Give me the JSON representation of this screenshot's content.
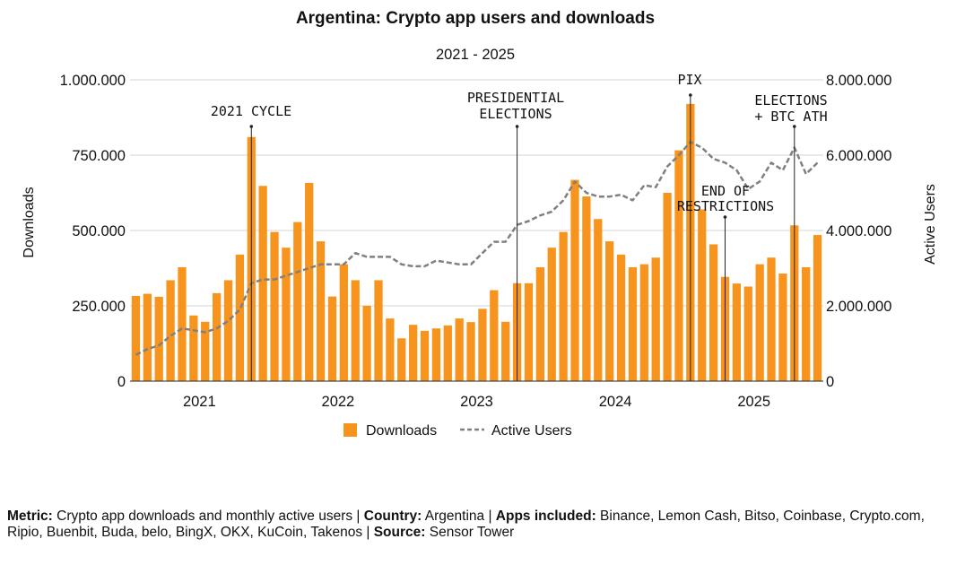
{
  "chart_data": {
    "type": "bar+line",
    "title": "Argentina: Crypto app users and downloads",
    "subtitle": "2021 - 2025",
    "ylabel_left": "Downloads",
    "ylabel_right": "Active Users",
    "ylim_left": [
      0,
      1000000
    ],
    "ylim_right": [
      0,
      8000000
    ],
    "yticks_left": [
      "0",
      "250.000",
      "500.000",
      "750.000",
      "1.000.000"
    ],
    "yticks_right": [
      "0",
      "2.000.000",
      "4.000.000",
      "6.000.000",
      "8.000.000"
    ],
    "xticks": [
      "2021",
      "2022",
      "2023",
      "2024",
      "2025"
    ],
    "xtick_positions": [
      6,
      18,
      30,
      42,
      54
    ],
    "legend": {
      "downloads": "Downloads",
      "active_users": "Active Users"
    },
    "colors": {
      "bar": "#F7941D",
      "line": "#808080",
      "text": "#111111"
    },
    "downloads": [
      283000,
      290000,
      280000,
      335000,
      378000,
      218000,
      197000,
      292000,
      335000,
      420000,
      810000,
      648000,
      495000,
      443000,
      528000,
      658000,
      464000,
      281000,
      388000,
      335000,
      250000,
      335000,
      208000,
      142000,
      187000,
      167000,
      175000,
      185000,
      208000,
      196000,
      240000,
      302000,
      197000,
      325000,
      325000,
      378000,
      443000,
      495000,
      668000,
      613000,
      538000,
      464000,
      420000,
      378000,
      388000,
      410000,
      625000,
      766000,
      920000,
      570000,
      454000,
      346000,
      324000,
      314000,
      388000,
      410000,
      357000,
      517000,
      378000,
      485000
    ],
    "active_users": [
      700000,
      850000,
      950000,
      1200000,
      1400000,
      1350000,
      1300000,
      1400000,
      1600000,
      1900000,
      2600000,
      2700000,
      2700000,
      2800000,
      2900000,
      3000000,
      3100000,
      3100000,
      3100000,
      3400000,
      3300000,
      3300000,
      3300000,
      3100000,
      3050000,
      3050000,
      3200000,
      3150000,
      3100000,
      3100000,
      3400000,
      3700000,
      3700000,
      4150000,
      4250000,
      4400000,
      4500000,
      4800000,
      5300000,
      5000000,
      4900000,
      4900000,
      4950000,
      4800000,
      5200000,
      5150000,
      5700000,
      6000000,
      6350000,
      6200000,
      5900000,
      5800000,
      5600000,
      5100000,
      5300000,
      5800000,
      5600000,
      6200000,
      5500000,
      5800000
    ],
    "annotations": [
      {
        "lines": [
          "2021 CYCLE"
        ],
        "index": 10
      },
      {
        "lines": [
          "PRESIDENTIAL",
          "ELECTIONS"
        ],
        "index": 33
      },
      {
        "lines": [
          "PIX"
        ],
        "index": 48
      },
      {
        "lines": [
          "END OF",
          "RESTRICTIONS"
        ],
        "index": 51
      },
      {
        "lines": [
          "ELECTIONS",
          "+ BTC ATH"
        ],
        "index": 57
      }
    ]
  },
  "footer": {
    "metric_label": "Metric:",
    "metric_value": " Crypto app downloads and monthly active users | ",
    "country_label": "Country:",
    "country_value": " Argentina | ",
    "apps_label": "Apps included:",
    "apps_value": " Binance, Lemon Cash, Bitso, Coinbase, Crypto.com, Ripio, Buenbit, Buda, belo, BingX, OKX, KuCoin, Takenos | ",
    "source_label": "Source:",
    "source_value": " Sensor Tower"
  }
}
